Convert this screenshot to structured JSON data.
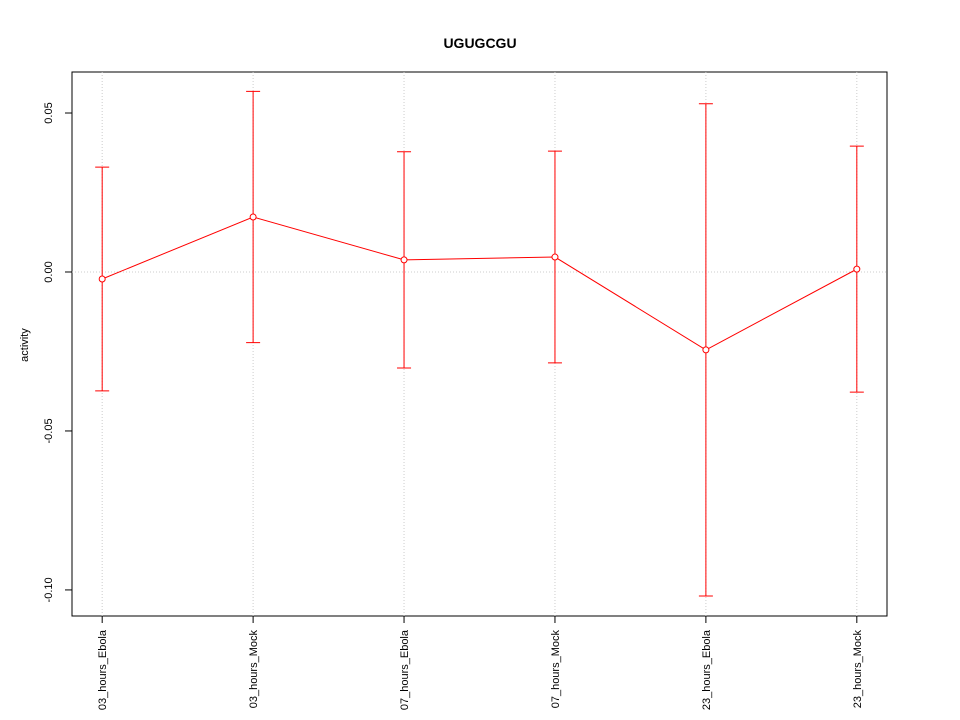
{
  "chart_data": {
    "type": "line",
    "title": "UGUGCGU",
    "y_label": "activity",
    "categories": [
      "03_hours_Ebola",
      "03_hours_Mock",
      "07_hours_Ebola",
      "07_hours_Mock",
      "23_hours_Ebola",
      "23_hours_Mock"
    ],
    "values": [
      -0.0022,
      0.0173,
      0.0038,
      0.0047,
      -0.0245,
      0.0009
    ],
    "errors": [
      0.0352,
      0.0395,
      0.034,
      0.0333,
      0.0774,
      0.0387
    ],
    "color": "#ff0000",
    "ylim": [
      -0.1082,
      0.0629
    ],
    "yticks": [
      {
        "value": -0.1,
        "label": "-0.10"
      },
      {
        "value": -0.05,
        "label": "-0.05"
      },
      {
        "value": 0,
        "label": "0.00"
      },
      {
        "value": 0.05,
        "label": "0.05"
      }
    ],
    "hline": 0,
    "grid": true
  }
}
